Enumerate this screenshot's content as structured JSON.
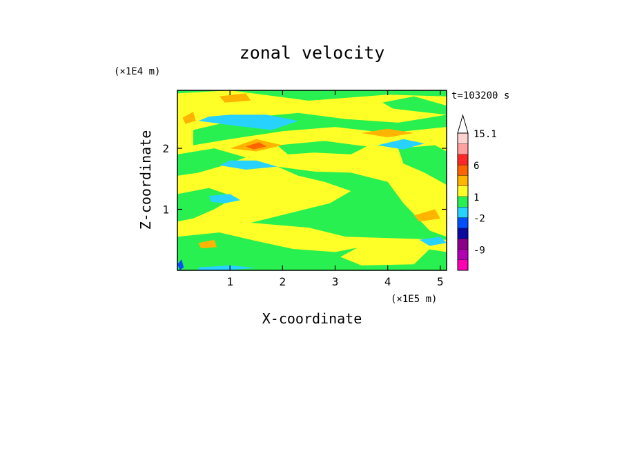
{
  "chart_data": {
    "type": "heatmap",
    "title": "zonal velocity",
    "xlabel": "X-coordinate",
    "ylabel": "Z-coordinate",
    "x_scale_label": "(×1E5 m)",
    "y_scale_label": "(×1E4 m)",
    "time_label": "t=103200 s",
    "xlim": [
      0,
      5.12
    ],
    "ylim": [
      0,
      2.95
    ],
    "x_ticks": [
      {
        "value": 1,
        "label": "1"
      },
      {
        "value": 2,
        "label": "2"
      },
      {
        "value": 3,
        "label": "3"
      },
      {
        "value": 4,
        "label": "4"
      },
      {
        "value": 5,
        "label": "5"
      }
    ],
    "y_ticks": [
      {
        "value": 1,
        "label": "1"
      },
      {
        "value": 2,
        "label": "2"
      }
    ],
    "colorbar": {
      "levels": [
        {
          "color": "#ff00b4",
          "label": ""
        },
        {
          "color": "#b400b4",
          "label": "-9"
        },
        {
          "color": "#8c008c",
          "label": ""
        },
        {
          "color": "#0a0aa0",
          "label": ""
        },
        {
          "color": "#0050ff",
          "label": "-2"
        },
        {
          "color": "#28d2ff",
          "label": ""
        },
        {
          "color": "#28f050",
          "label": "1"
        },
        {
          "color": "#ffff28",
          "label": ""
        },
        {
          "color": "#ffb400",
          "label": ""
        },
        {
          "color": "#ff6400",
          "label": "6"
        },
        {
          "color": "#ff2828",
          "label": ""
        },
        {
          "color": "#ffa0a0",
          "label": ""
        },
        {
          "color": "#ffd2d2",
          "label": "15.1"
        }
      ],
      "extend": "max"
    },
    "field_color_legend": {
      "green": "#28f050",
      "yellow": "#ffff28",
      "cyan": "#28d2ff",
      "orange": "#ffb400",
      "dark_orange": "#ff6400",
      "blue": "#0050ff",
      "dark_blue": "#0a0aa0",
      "purple": "#8c008c",
      "background": "#ffffff",
      "axis": "#000000"
    }
  }
}
